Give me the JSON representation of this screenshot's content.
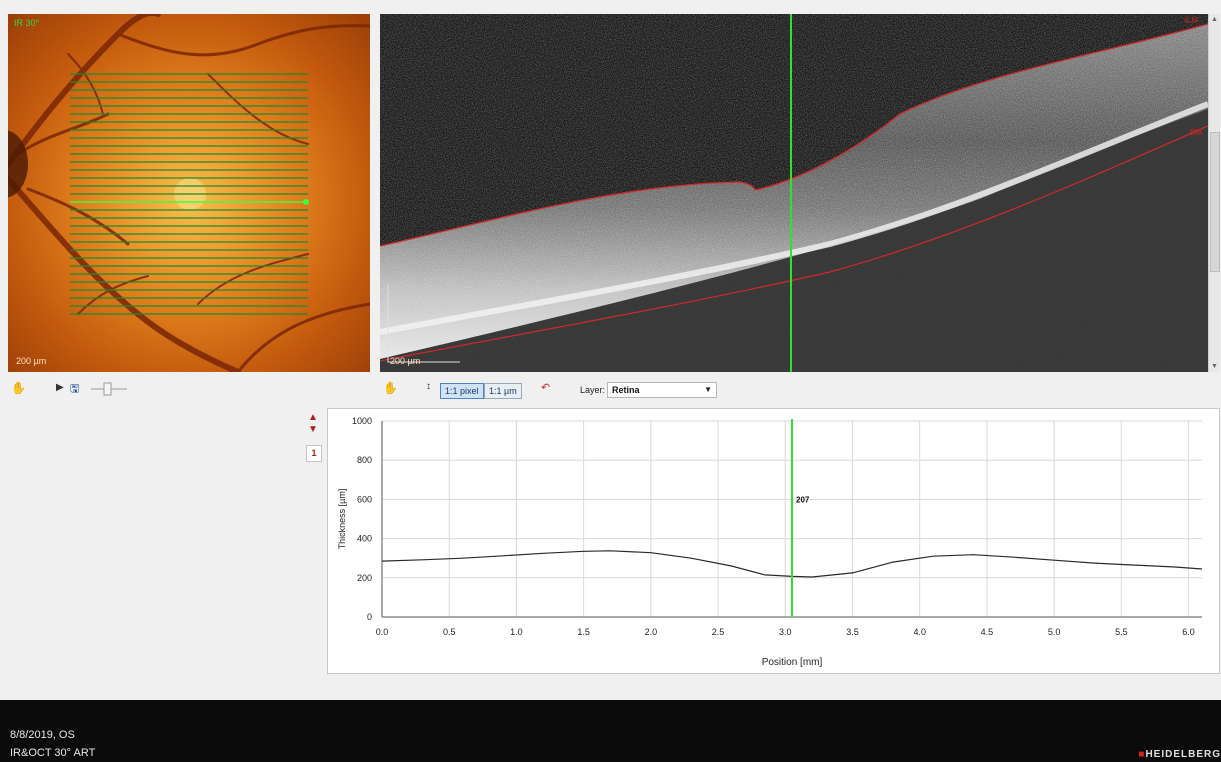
{
  "fundus": {
    "label": "IR 30°",
    "scale_label": "200 µm",
    "scan_line_count": 31,
    "selected_scan_index": 16
  },
  "oct": {
    "scale_label": "200 µm",
    "tag_top": "ILM",
    "tag_bottom": "BM"
  },
  "fundus_toolbar": {
    "hand_icon": "hand-icon",
    "play_icon": "play-icon",
    "save_icon": "save-icon",
    "slider_icon": "slider-icon"
  },
  "oct_toolbar": {
    "hand_icon": "hand-icon",
    "btn_pixel": "1:1 pixel",
    "btn_um": "1:1 µm",
    "layer_label": "Layer:",
    "layer_value": "Retina"
  },
  "side": {
    "index_value": "1"
  },
  "chart_data": {
    "type": "line",
    "xlabel": "Position [mm]",
    "ylabel": "Thickness [µm]",
    "xlim": [
      0.0,
      6.1
    ],
    "ylim": [
      0,
      1000
    ],
    "x_ticks": [
      "0.0",
      "0.5",
      "1.0",
      "1.5",
      "2.0",
      "2.5",
      "3.0",
      "3.5",
      "4.0",
      "4.5",
      "5.0",
      "5.5",
      "6.0"
    ],
    "y_ticks": [
      "0",
      "200",
      "400",
      "600",
      "800",
      "1000"
    ],
    "grid": true,
    "cursor_x": 3.05,
    "cursor_value_label": "207",
    "series": [
      {
        "color": "#2a2a2a",
        "x": [
          0.0,
          0.3,
          0.6,
          0.9,
          1.2,
          1.5,
          1.7,
          2.0,
          2.3,
          2.6,
          2.85,
          3.05,
          3.2,
          3.5,
          3.8,
          4.1,
          4.4,
          4.7,
          5.0,
          5.3,
          5.6,
          5.9,
          6.1
        ],
        "y": [
          285,
          292,
          300,
          312,
          325,
          335,
          338,
          328,
          300,
          260,
          215,
          207,
          204,
          225,
          280,
          310,
          318,
          305,
          290,
          275,
          265,
          255,
          245
        ]
      }
    ]
  },
  "footer": {
    "date_eye": "8/8/2019, OS",
    "modality": "IR&OCT 30° ART",
    "brand": "HEIDELBERG"
  }
}
